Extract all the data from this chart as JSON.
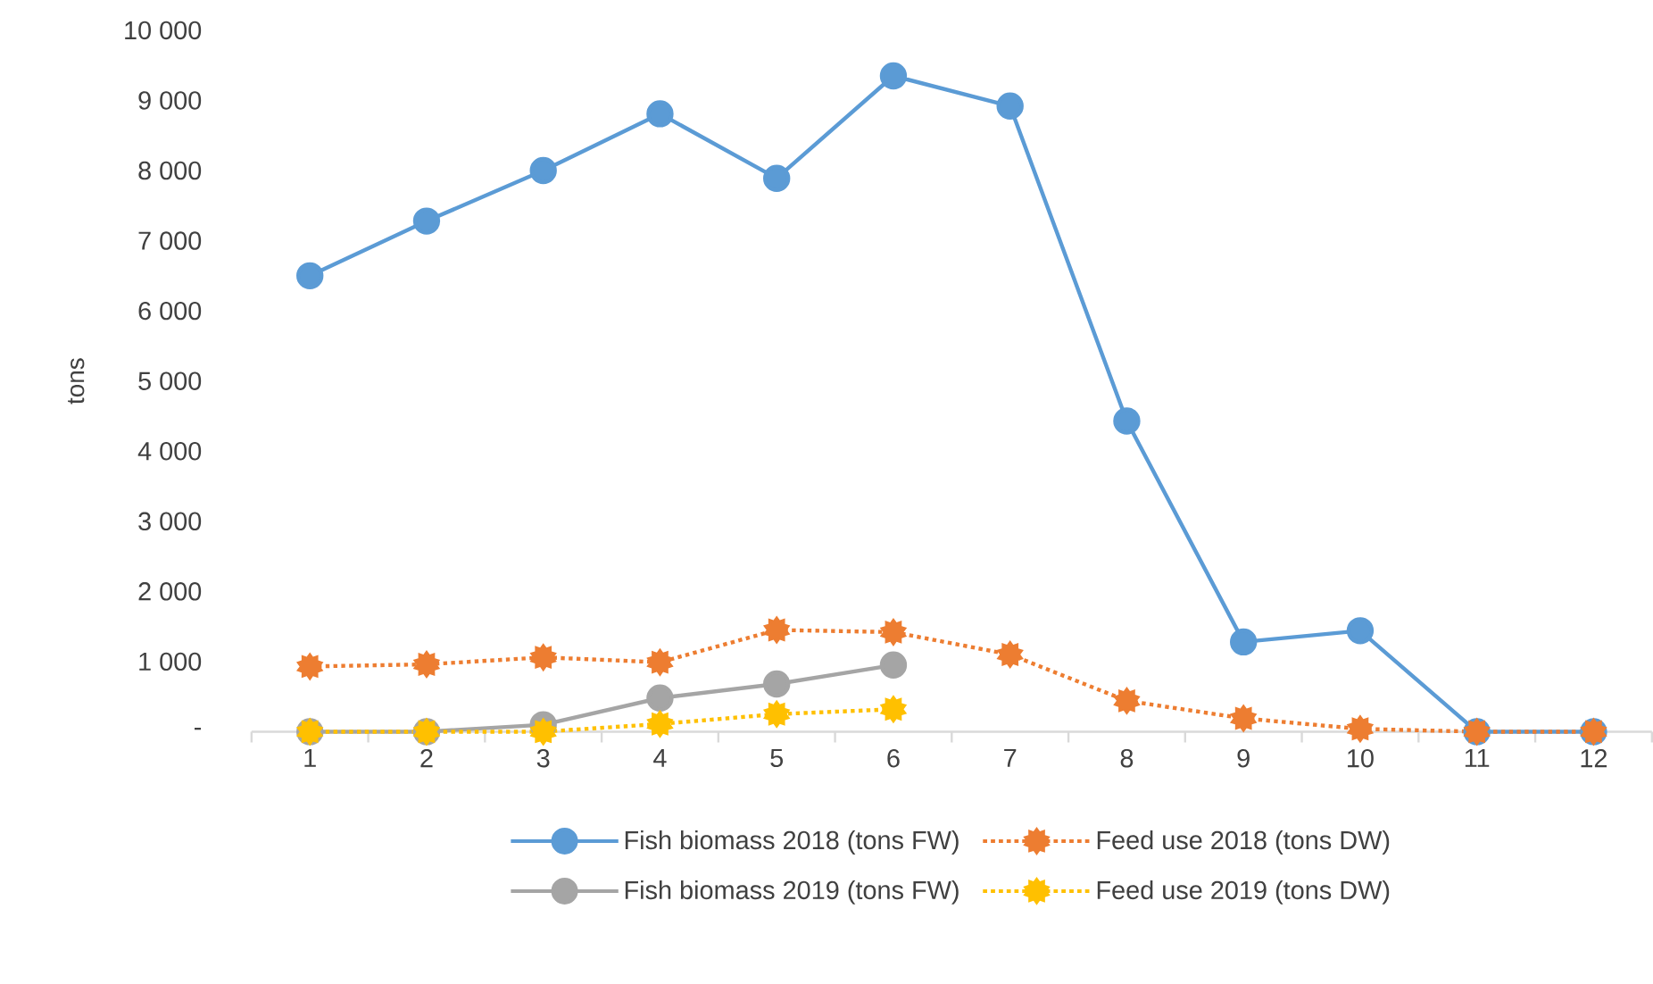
{
  "chart_data": {
    "type": "line",
    "ylabel": "tons",
    "categories": [
      "1",
      "2",
      "3",
      "4",
      "5",
      "6",
      "7",
      "8",
      "9",
      "10",
      "11",
      "12"
    ],
    "ylim": [
      0,
      10000
    ],
    "yticks": [
      {
        "value": 0,
        "label": "-"
      },
      {
        "value": 1000,
        "label": "1 000"
      },
      {
        "value": 2000,
        "label": "2 000"
      },
      {
        "value": 3000,
        "label": "3 000"
      },
      {
        "value": 4000,
        "label": "4 000"
      },
      {
        "value": 5000,
        "label": "5 000"
      },
      {
        "value": 6000,
        "label": "6 000"
      },
      {
        "value": 7000,
        "label": "7 000"
      },
      {
        "value": 8000,
        "label": "8 000"
      },
      {
        "value": 9000,
        "label": "9 000"
      },
      {
        "value": 10000,
        "label": "10 000"
      }
    ],
    "grid": false,
    "legend": "bottom",
    "series": [
      {
        "name": "Fish biomass 2018 (tons FW)",
        "color": "#5b9bd5",
        "marker": "circle",
        "line_style": "solid",
        "values": [
          6500,
          7280,
          8000,
          8810,
          7890,
          9350,
          8920,
          4430,
          1280,
          1440,
          0,
          0
        ]
      },
      {
        "name": "Feed use 2018 (tons DW)",
        "color": "#ed7d31",
        "marker": "star",
        "line_style": "dotted",
        "values": [
          930,
          960,
          1060,
          990,
          1450,
          1420,
          1100,
          440,
          190,
          40,
          0,
          0
        ]
      },
      {
        "name": "Fish biomass 2019 (tons FW)",
        "color": "#a5a5a5",
        "marker": "circle",
        "line_style": "solid",
        "values": [
          0,
          0,
          100,
          480,
          680,
          950,
          null,
          null,
          null,
          null,
          null,
          null
        ]
      },
      {
        "name": "Feed use 2019 (tons DW)",
        "color": "#ffc000",
        "marker": "star",
        "line_style": "dotted",
        "values": [
          0,
          0,
          0,
          110,
          250,
          320,
          null,
          null,
          null,
          null,
          null,
          null
        ]
      }
    ]
  }
}
